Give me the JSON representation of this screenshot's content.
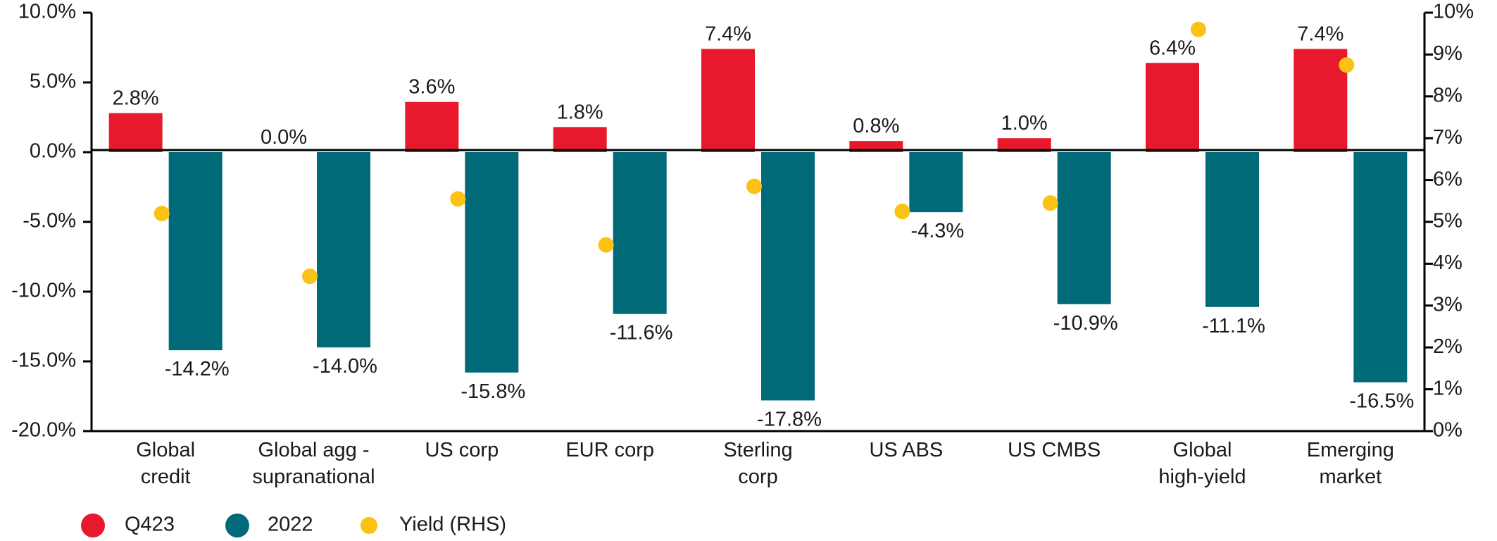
{
  "chart_data": {
    "type": "bar",
    "categories": [
      [
        "Global",
        "credit"
      ],
      [
        "Global agg -",
        "supranational"
      ],
      [
        "US corp"
      ],
      [
        "EUR corp"
      ],
      [
        "Sterling",
        "corp"
      ],
      [
        "US ABS"
      ],
      [
        "US CMBS"
      ],
      [
        "Global",
        "high-yield"
      ],
      [
        "Emerging",
        "market"
      ]
    ],
    "series": [
      {
        "name": "Q423",
        "axis": "left",
        "color": "#e8192c",
        "values": [
          2.8,
          0.0,
          3.6,
          1.8,
          7.4,
          0.8,
          1.0,
          6.4,
          7.4
        ],
        "labels": [
          "2.8%",
          "0.0%",
          "3.6%",
          "1.8%",
          "7.4%",
          "0.8%",
          "1.0%",
          "6.4%",
          "7.4%"
        ]
      },
      {
        "name": "2022",
        "axis": "left",
        "color": "#006a78",
        "values": [
          -14.2,
          -14.0,
          -15.8,
          -11.6,
          -17.8,
          -4.3,
          -10.9,
          -11.1,
          -16.5
        ],
        "labels": [
          "-14.2%",
          "-14.0%",
          "-15.8%",
          "-11.6%",
          "-17.8%",
          "-4.3%",
          "-10.9%",
          "-11.1%",
          "-16.5%"
        ]
      },
      {
        "name": "Yield (RHS)",
        "axis": "right",
        "type": "scatter",
        "color": "#fbc113",
        "values": [
          5.2,
          3.7,
          5.55,
          4.45,
          5.85,
          5.25,
          5.45,
          9.6,
          8.75
        ]
      }
    ],
    "y_left": {
      "range": [
        -20,
        10
      ],
      "ticks": [
        10,
        5,
        0,
        -5,
        -10,
        -15,
        -20
      ],
      "tick_labels": [
        "10.0%",
        "5.0%",
        "0.0%",
        "-5.0%",
        "-10.0%",
        "-15.0%",
        "-20.0%"
      ]
    },
    "y_right": {
      "range": [
        0,
        10
      ],
      "ticks": [
        10,
        9,
        8,
        7,
        6,
        5,
        4,
        3,
        2,
        1,
        0
      ],
      "tick_labels": [
        "10%",
        "9%",
        "8%",
        "7%",
        "6%",
        "5%",
        "4%",
        "3%",
        "2%",
        "1%",
        "0%"
      ]
    },
    "grid": false,
    "legend_position": "bottom-left"
  }
}
